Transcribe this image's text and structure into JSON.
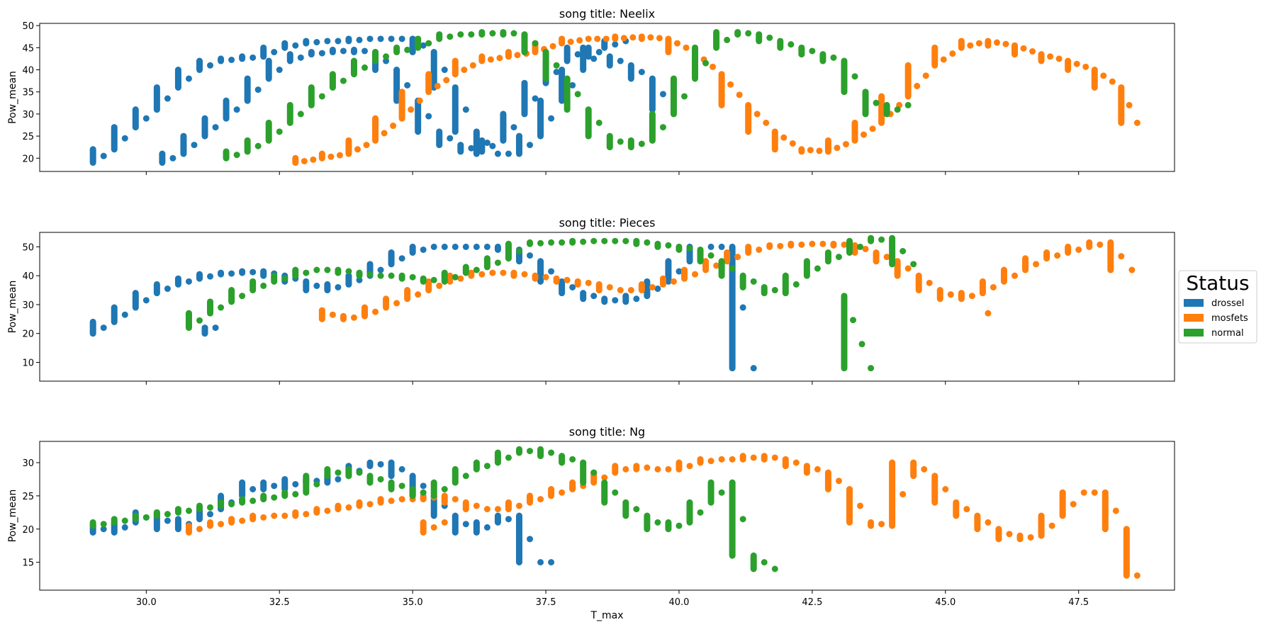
{
  "figure": {
    "legend": {
      "title": "Status",
      "entries": [
        {
          "label": "drossel",
          "color": "#1f77b4"
        },
        {
          "label": "mosfets",
          "color": "#ff7f0e"
        },
        {
          "label": "normal",
          "color": "#2ca02c"
        }
      ]
    }
  },
  "chart_data": [
    {
      "type": "scatter",
      "title": "song title: Neelix",
      "xlabel": "",
      "ylabel": "Pow_mean",
      "xlim": [
        28.0,
        49.3
      ],
      "ylim": [
        17,
        50.5
      ],
      "yticks": [
        20,
        25,
        30,
        35,
        40,
        45,
        50
      ],
      "xticks": [
        30.0,
        32.5,
        35.0,
        37.5,
        40.0,
        42.5,
        45.0,
        47.5
      ],
      "show_xtick_labels": false,
      "series": [
        {
          "name": "drossel",
          "color": "#1f77b4",
          "curves": [
            {
              "x": [
                29.0,
                29.4,
                29.8,
                30.2,
                30.6,
                31.0,
                31.4,
                31.8,
                32.2,
                32.6,
                33.0,
                33.4,
                33.8,
                34.2,
                34.6,
                35.0,
                35.4,
                35.8,
                36.2,
                36.6,
                37.0,
                37.4,
                37.8,
                38.2,
                38.6,
                39.0
              ],
              "y": [
                19,
                22,
                27,
                31,
                36,
                40,
                42,
                42.5,
                43,
                45,
                46,
                46.5,
                46.5,
                47,
                47,
                47,
                44,
                36,
                26,
                21,
                21,
                25,
                33,
                40,
                45,
                46.5
              ]
            },
            {
              "x": [
                30.3,
                30.7,
                31.1,
                31.5,
                31.9,
                32.3,
                32.7,
                33.1,
                33.5,
                33.9,
                34.3,
                34.7,
                35.1,
                35.5,
                35.9,
                36.3,
                36.7,
                37.1,
                37.5,
                37.9,
                38.3,
                38.7,
                39.1,
                39.5,
                39.9
              ],
              "y": [
                19,
                21,
                25,
                29,
                33,
                38,
                42,
                43.5,
                44,
                44.5,
                44,
                40,
                33,
                26,
                23,
                21.5,
                24,
                30,
                37,
                42,
                45,
                43,
                41,
                38,
                31
              ]
            }
          ]
        },
        {
          "name": "mosfets",
          "color": "#ff7f0e",
          "curves": [
            {
              "x": [
                32.8,
                33.3,
                33.8,
                34.3,
                34.8,
                35.3,
                35.8,
                36.3,
                36.8,
                37.3,
                37.8,
                38.3,
                38.8,
                39.3,
                39.8,
                40.3,
                40.8,
                41.3,
                41.8,
                42.3,
                42.8,
                43.3,
                43.8,
                44.3,
                44.8,
                45.3,
                45.8,
                46.3,
                46.8,
                47.3,
                47.8,
                48.3,
                48.6
              ],
              "y": [
                19,
                20,
                21,
                24,
                29,
                35,
                39,
                42,
                43,
                44,
                46,
                47,
                47,
                47.5,
                47,
                44,
                39,
                32,
                26,
                22,
                21.5,
                24,
                28,
                34,
                41,
                45,
                46.5,
                45.5,
                43.5,
                42,
                40,
                36,
                28
              ]
            }
          ]
        },
        {
          "name": "normal",
          "color": "#2ca02c",
          "curves": [
            {
              "x": [
                31.5,
                31.9,
                32.3,
                32.7,
                33.1,
                33.5,
                33.9,
                34.3,
                34.7,
                35.1,
                35.5,
                35.9,
                36.3,
                36.7,
                37.1,
                37.5,
                37.9,
                38.3,
                38.7,
                39.1,
                39.5,
                39.9,
                40.3,
                40.7,
                41.1,
                41.5,
                41.9,
                42.3,
                42.7,
                43.1,
                43.5,
                43.9,
                44.3
              ],
              "y": [
                20,
                21.5,
                24,
                28,
                32,
                36,
                39,
                42,
                44,
                45,
                47,
                48,
                48,
                48.5,
                48,
                44,
                38,
                31,
                25,
                22.5,
                24,
                30,
                38,
                45,
                48.5,
                48,
                46.5,
                45,
                43.5,
                42,
                35,
                30,
                32
              ]
            }
          ]
        }
      ]
    },
    {
      "type": "scatter",
      "title": "song title: Pieces",
      "xlabel": "",
      "ylabel": "Pow_mean",
      "xlim": [
        28.0,
        49.3
      ],
      "ylim": [
        3.5,
        55
      ],
      "yticks": [
        10,
        20,
        30,
        40,
        50
      ],
      "xticks": [
        30.0,
        32.5,
        35.0,
        37.5,
        40.0,
        42.5,
        45.0,
        47.5
      ],
      "show_xtick_labels": false,
      "series": [
        {
          "name": "drossel",
          "color": "#1f77b4",
          "curves": [
            {
              "x": [
                29.0,
                29.4,
                29.8,
                30.2,
                30.6,
                31.0,
                31.4,
                31.8,
                32.2,
                32.6,
                33.0,
                33.4,
                33.8,
                34.2,
                34.6,
                35.0,
                35.4,
                35.8,
                36.2,
                36.6,
                37.0,
                37.4,
                37.8,
                38.2,
                38.6,
                39.0,
                39.4,
                39.8,
                40.2,
                40.6,
                41.0,
                41.4
              ],
              "y": [
                20,
                24,
                29,
                34,
                37,
                39,
                40.5,
                41,
                41.5,
                40,
                38,
                35,
                37,
                40,
                44,
                48,
                50,
                50,
                50,
                50,
                49,
                45,
                38,
                34,
                32,
                31,
                33,
                38,
                45,
                50,
                50,
                8
              ]
            },
            {
              "x": [
                31.1,
                31.3
              ],
              "y": [
                20,
                22
              ]
            }
          ]
        },
        {
          "name": "mosfets",
          "color": "#ff7f0e",
          "curves": [
            {
              "x": [
                33.3,
                33.7,
                34.1,
                34.5,
                34.9,
                35.3,
                35.7,
                36.1,
                36.5,
                36.9,
                37.3,
                37.7,
                38.1,
                38.5,
                38.9,
                39.3,
                39.7,
                40.1,
                40.5,
                40.9,
                41.3,
                41.7,
                42.1,
                42.5,
                42.9,
                43.3,
                43.7,
                44.1,
                44.5,
                44.9,
                45.3,
                45.7,
                46.1,
                46.5,
                46.9,
                47.3,
                47.7,
                48.1,
                48.5
              ],
              "y": [
                28,
                25,
                26,
                29,
                32,
                35,
                38,
                40,
                41,
                41,
                40,
                39,
                38,
                37,
                35,
                35,
                37,
                39,
                42,
                45,
                48,
                50,
                50.5,
                51,
                51,
                50.5,
                48,
                45,
                40,
                35,
                32,
                34,
                38,
                42,
                46,
                48,
                50,
                51.5,
                42
              ]
            },
            {
              "x": [
                45.8
              ],
              "y": [
                27
              ]
            }
          ]
        },
        {
          "name": "normal",
          "color": "#2ca02c",
          "curves": [
            {
              "x": [
                30.8,
                31.2,
                31.6,
                32.0,
                32.4,
                32.8,
                33.2,
                33.6,
                34.0,
                34.4,
                34.8,
                35.2,
                35.6,
                36.0,
                36.4,
                36.8,
                37.2,
                37.6,
                38.0,
                38.4,
                38.8,
                39.2,
                39.6,
                40.0,
                40.4,
                40.8,
                41.2,
                41.6,
                42.0,
                42.4,
                42.8,
                43.2,
                43.6,
                44.0,
                44.4
              ],
              "y": [
                22,
                27,
                31,
                35,
                38,
                40,
                42,
                42,
                41,
                40,
                40,
                39,
                38,
                41,
                43,
                46,
                51,
                51.5,
                51.5,
                52,
                52,
                52,
                51,
                50,
                49,
                45,
                40,
                36,
                34,
                40,
                45,
                48,
                52,
                53,
                44
              ]
            },
            {
              "x": [
                43.1,
                43.6
              ],
              "y": [
                33,
                8
              ]
            }
          ]
        }
      ]
    },
    {
      "type": "scatter",
      "title": "song title: Ng",
      "xlabel": "T_max",
      "ylabel": "Pow_mean",
      "xlim": [
        28.0,
        49.3
      ],
      "ylim": [
        10.8,
        33.2
      ],
      "yticks": [
        15,
        20,
        25,
        30
      ],
      "xticks": [
        30.0,
        32.5,
        35.0,
        37.5,
        40.0,
        42.5,
        45.0,
        47.5
      ],
      "show_xtick_labels": true,
      "series": [
        {
          "name": "drossel",
          "color": "#1f77b4",
          "curves": [
            {
              "x": [
                29.0,
                29.4,
                29.8,
                30.2,
                30.6,
                31.0,
                31.4,
                31.8,
                32.2,
                32.6,
                33.0,
                33.4,
                33.8,
                34.2,
                34.6,
                35.0,
                35.4,
                35.8,
                36.2,
                36.6,
                37.0,
                37.4,
                37.6
              ],
              "y": [
                20.5,
                19.5,
                21,
                22.5,
                20,
                21.5,
                23,
                25,
                27,
                26,
                27.5,
                27,
                28,
                29.5,
                30,
                28,
                25,
                22,
                19.5,
                21,
                22,
                15,
                15
              ]
            }
          ]
        },
        {
          "name": "mosfets",
          "color": "#ff7f0e",
          "curves": [
            {
              "x": [
                30.8,
                31.2,
                31.6,
                32.0,
                32.4,
                32.8,
                33.2,
                33.6,
                34.0,
                34.4,
                34.8,
                35.2,
                35.6,
                36.0,
                36.4,
                36.8,
                37.2,
                37.6,
                38.0,
                38.4,
                38.8,
                39.2,
                39.6,
                40.0,
                40.4,
                40.8,
                41.2,
                41.6,
                42.0,
                42.4,
                42.8,
                43.2,
                43.6,
                44.0,
                44.4,
                44.8,
                45.2,
                45.6,
                46.0,
                46.4,
                46.8,
                47.2,
                47.6,
                48.0,
                48.4,
                48.6
              ],
              "y": [
                19.5,
                20.5,
                21,
                21.5,
                22,
                22,
                22.5,
                23,
                23.5,
                24,
                24.5,
                24.5,
                25,
                24,
                23,
                23,
                24,
                25,
                26,
                27,
                28.5,
                29.5,
                29,
                29,
                30,
                30.5,
                30.5,
                31,
                30.5,
                29.5,
                28.5,
                26,
                21,
                20.5,
                30,
                28,
                24,
                22,
                20,
                18.5,
                19,
                22,
                25.5,
                25.5,
                20,
                13
              ]
            },
            {
              "x": [
                35.2,
                35.6
              ],
              "y": [
                19.5,
                21
              ]
            }
          ]
        },
        {
          "name": "normal",
          "color": "#2ca02c",
          "curves": [
            {
              "x": [
                29.0,
                29.4,
                29.8,
                30.2,
                30.6,
                31.0,
                31.4,
                31.8,
                32.2,
                32.6,
                33.0,
                33.4,
                33.8,
                34.2,
                34.6,
                35.0,
                35.4,
                35.8,
                36.2,
                36.6,
                37.0,
                37.4,
                37.8,
                38.2,
                38.6,
                39.0,
                39.4,
                39.8,
                40.2,
                40.6,
                41.0,
                41.4,
                41.8
              ],
              "y": [
                20.5,
                21,
                21.5,
                22,
                22.5,
                23,
                23.5,
                24,
                24.5,
                25,
                25.5,
                28,
                29,
                28,
                27,
                26,
                25,
                27,
                29,
                30,
                31.5,
                32,
                31,
                30,
                27,
                24,
                22,
                20,
                21,
                24,
                27,
                16,
                14
              ]
            }
          ]
        }
      ]
    }
  ]
}
